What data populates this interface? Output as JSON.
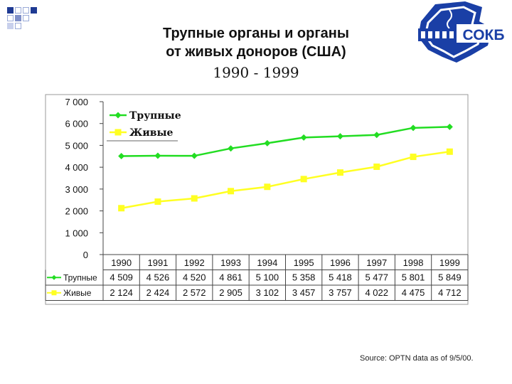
{
  "title": {
    "line1": "Трупные органы и органы",
    "line2": "от живых доноров (США)",
    "line3": "1990 - 1999"
  },
  "logo": {
    "text": "СОКБ",
    "colors": {
      "blue": "#1a3fa6",
      "light": "#7f9ad8"
    }
  },
  "source": "Source: OPTN data as of 9/5/00.",
  "chart_data": {
    "type": "line",
    "title": "Трупные органы и органы от живых доноров (США) 1990 - 1999",
    "categories": [
      "1990",
      "1991",
      "1992",
      "1993",
      "1994",
      "1995",
      "1996",
      "1997",
      "1998",
      "1999"
    ],
    "ylim": [
      0,
      7000
    ],
    "yticks": [
      0,
      1000,
      2000,
      3000,
      4000,
      5000,
      6000,
      7000
    ],
    "ytick_labels": [
      "0",
      "1 000",
      "2 000",
      "3 000",
      "4 000",
      "5 000",
      "6 000",
      "7 000"
    ],
    "legend_position": "top-left",
    "series": [
      {
        "name": "Трупные",
        "color": "#22dd22",
        "marker": "diamond",
        "values": [
          4509,
          4526,
          4520,
          4861,
          5100,
          5358,
          5418,
          5477,
          5801,
          5849
        ],
        "labels": [
          "4 509",
          "4 526",
          "4 520",
          "4 861",
          "5 100",
          "5 358",
          "5 418",
          "5 477",
          "5 801",
          "5 849"
        ]
      },
      {
        "name": "Живые",
        "color": "#ffff22",
        "marker": "square",
        "values": [
          2124,
          2424,
          2572,
          2905,
          3102,
          3457,
          3757,
          4022,
          4475,
          4712
        ],
        "labels": [
          "2 124",
          "2 424",
          "2 572",
          "2 905",
          "3 102",
          "3 457",
          "3 757",
          "4 022",
          "4 475",
          "4 712"
        ]
      }
    ]
  }
}
